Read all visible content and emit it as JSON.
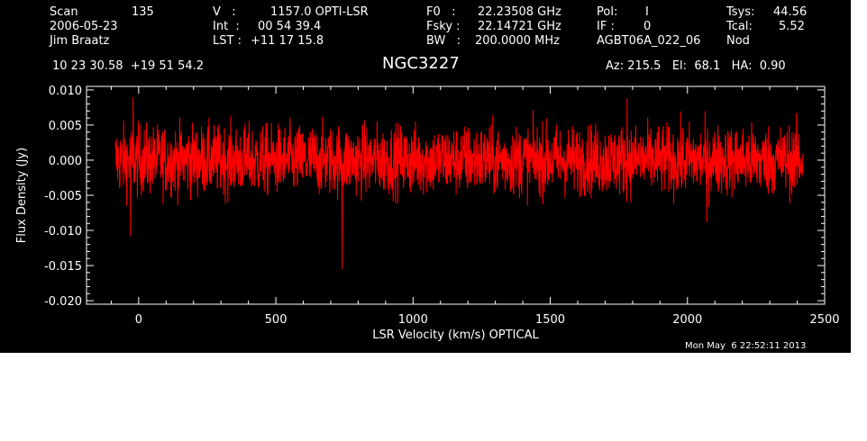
{
  "header": {
    "col1": {
      "scan_label": "Scan",
      "scan_value": "135",
      "date": "2006-05-23",
      "observer": "Jim Braatz"
    },
    "col2": {
      "v_label": "V   :",
      "v_value": "1157.0 OPTI-LSR",
      "int_label": "Int  :",
      "int_value": "00 54 39.4",
      "lst_label": "LST :",
      "lst_value": "+11 17 15.8"
    },
    "col3": {
      "f0_label": "F0   :",
      "f0_value": "22.23508 GHz",
      "fsky_label": "Fsky :",
      "fsky_value": "22.14721 GHz",
      "bw_label": "BW   :",
      "bw_value": "200.0000 MHz"
    },
    "col4": {
      "pol_label": "Pol:",
      "pol_value": "I",
      "if_label": "IF :",
      "if_value": "0",
      "project": "AGBT06A_022_06"
    },
    "col5": {
      "tsys_label": "Tsys:",
      "tsys_value": "44.56",
      "tcal_label": "Tcal:",
      "tcal_value": "5.52",
      "mode": "Nod"
    },
    "coords": "10 23 30.58  +19 51 54.2",
    "object": "NGC3227",
    "pointing": "Az: 215.5   El:  68.1   HA:  0.90"
  },
  "timestamp": "Mon May  6 22:52:11 2013",
  "colors": {
    "background": "#000000",
    "axes": "#ffffff",
    "trace": "#ff0000"
  },
  "chart_data": {
    "type": "line",
    "xlabel": "LSR Velocity (km/s) OPTICAL",
    "ylabel": "Flux Density (Jy)",
    "xlim": [
      -190,
      2500
    ],
    "ylim": [
      -0.0205,
      0.0105
    ],
    "xticks": [
      0,
      500,
      1000,
      1500,
      2000,
      2500
    ],
    "xtick_labels": [
      "0",
      "500",
      "1000",
      "1500",
      "2000",
      "2500"
    ],
    "yticks": [
      0.01,
      0.005,
      0.0,
      -0.005,
      -0.01,
      -0.015,
      -0.02
    ],
    "ytick_labels": [
      "0.010",
      "0.005",
      "0.000",
      "-0.005",
      "-0.010",
      "-0.015",
      "-0.020"
    ],
    "grid": false,
    "series": [
      {
        "x_start": -85,
        "x_end": 2420,
        "noise_rms": 0.0025,
        "features": [
          {
            "x": 742,
            "y": -0.0155,
            "kind": "spike"
          },
          {
            "x": -30,
            "y": -0.0108,
            "kind": "spike"
          },
          {
            "x": 1780,
            "y": 0.0088,
            "kind": "spike"
          },
          {
            "x": -20,
            "y": 0.009,
            "kind": "spike"
          },
          {
            "x": 2070,
            "y": -0.0088,
            "kind": "spike"
          }
        ]
      }
    ]
  }
}
